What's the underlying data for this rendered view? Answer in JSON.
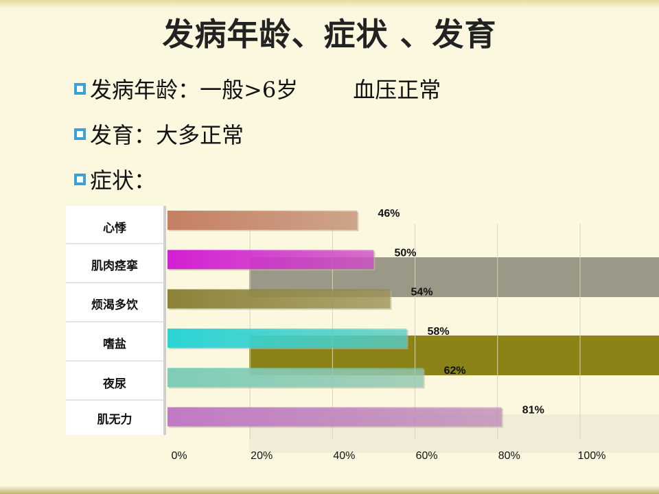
{
  "title": "发病年龄、症状 、发育",
  "bullets": [
    {
      "text": "发病年龄：一般>6岁",
      "extra": "血压正常"
    },
    {
      "text": "发育：大多正常",
      "extra": ""
    },
    {
      "text": "症状：",
      "extra": ""
    }
  ],
  "colors": {
    "background": "#fbf8df",
    "bullet_box": "#3aa0d8"
  },
  "chart_data": {
    "type": "bar",
    "orientation": "horizontal",
    "categories": [
      "心悸",
      "肌肉痉挛",
      "烦渴多饮",
      "嗜盐",
      "夜尿",
      "肌无力"
    ],
    "values": [
      46,
      50,
      54,
      58,
      62,
      81
    ],
    "value_labels": [
      "46%",
      "50%",
      "54%",
      "58%",
      "62%",
      "81%"
    ],
    "bar_colors": [
      "#c67f63",
      "#d41ed4",
      "#8d8238",
      "#2ad4d4",
      "#7ecdb8",
      "#c07ac4"
    ],
    "x_ticks": [
      "0%",
      "20%",
      "40%",
      "60%",
      "80%",
      "100%"
    ],
    "xlim": [
      0,
      100
    ],
    "grid": true,
    "title": "",
    "xlabel": "",
    "ylabel": ""
  }
}
